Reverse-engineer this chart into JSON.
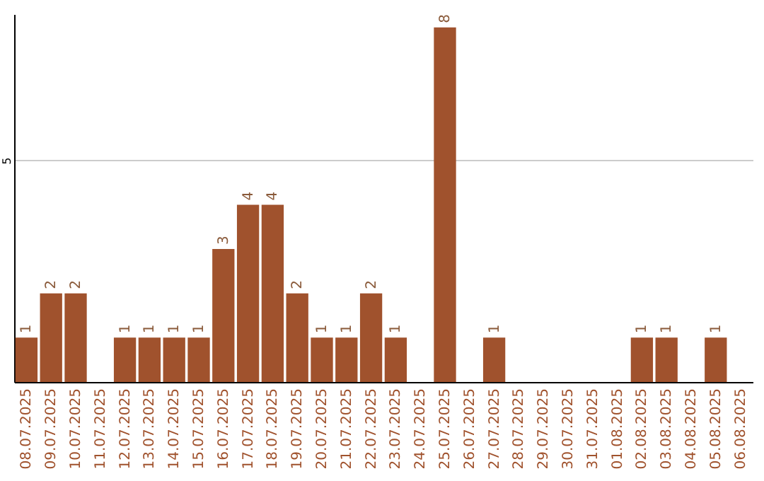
{
  "chart_data": {
    "type": "bar",
    "categories": [
      "08.07.2025",
      "09.07.2025",
      "10.07.2025",
      "11.07.2025",
      "12.07.2025",
      "13.07.2025",
      "14.07.2025",
      "15.07.2025",
      "16.07.2025",
      "17.07.2025",
      "18.07.2025",
      "19.07.2025",
      "20.07.2025",
      "21.07.2025",
      "22.07.2025",
      "23.07.2025",
      "24.07.2025",
      "25.07.2025",
      "26.07.2025",
      "27.07.2025",
      "28.07.2025",
      "29.07.2025",
      "30.07.2025",
      "31.07.2025",
      "01.08.2025",
      "02.08.2025",
      "03.08.2025",
      "04.08.2025",
      "05.08.2025",
      "06.08.2025"
    ],
    "values": [
      1,
      2,
      2,
      0,
      1,
      1,
      1,
      1,
      3,
      4,
      4,
      2,
      1,
      1,
      2,
      1,
      0,
      8,
      0,
      1,
      0,
      0,
      0,
      0,
      0,
      1,
      1,
      0,
      1,
      0
    ],
    "value_labels": [
      "1",
      "2",
      "2",
      null,
      "1",
      "1",
      "1",
      "1",
      "3",
      "4",
      "4",
      "2",
      "1",
      "1",
      "2",
      "1",
      null,
      "8",
      null,
      "1",
      null,
      null,
      null,
      null,
      null,
      "1",
      "1",
      null,
      "1",
      null
    ],
    "color": "#a0522d",
    "ylim": [
      0,
      8.3
    ],
    "yticks": [
      5
    ],
    "grid": "y"
  }
}
